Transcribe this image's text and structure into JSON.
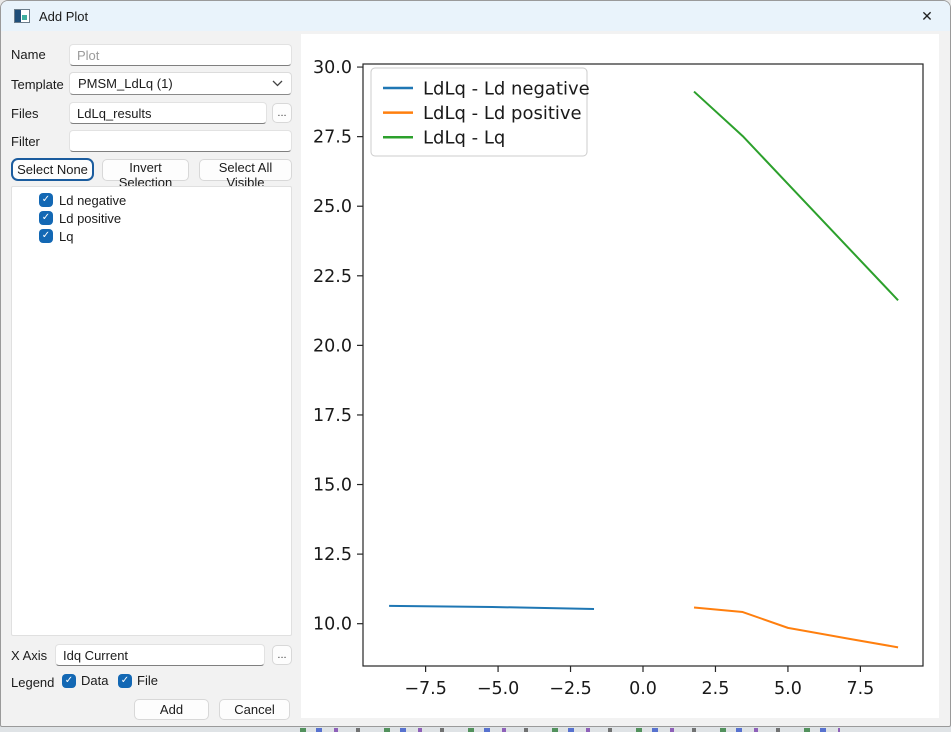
{
  "window": {
    "title": "Add Plot",
    "close_glyph": "✕"
  },
  "colors": {
    "accent": "#1368b4",
    "focus": "#1b5c9e",
    "titlebar": "#e9f3fb"
  },
  "form": {
    "name": {
      "label": "Name",
      "placeholder": "Plot",
      "value": ""
    },
    "template": {
      "label": "Template",
      "value": "PMSM_LdLq (1)"
    },
    "files": {
      "label": "Files",
      "value": "LdLq_results",
      "browse": "..."
    },
    "filter": {
      "label": "Filter",
      "value": ""
    },
    "selection_buttons": {
      "select_none": "Select None",
      "invert": "Invert Selection",
      "select_all": "Select All Visible"
    },
    "items": [
      {
        "label": "Ld negative",
        "checked": true
      },
      {
        "label": "Ld positive",
        "checked": true
      },
      {
        "label": "Lq",
        "checked": true
      }
    ],
    "xaxis": {
      "label": "X Axis",
      "value": "Idq Current",
      "browse": "..."
    },
    "legend": {
      "label": "Legend",
      "options": [
        {
          "label": "Data",
          "checked": true
        },
        {
          "label": "File",
          "checked": true
        }
      ]
    },
    "actions": {
      "add": "Add",
      "cancel": "Cancel"
    }
  },
  "chart_data": {
    "type": "line",
    "title": "",
    "xlabel": "",
    "ylabel": "",
    "xlim": [
      -9.66,
      9.66
    ],
    "ylim": [
      8.48,
      30.11
    ],
    "xticks": [
      -7.5,
      -5.0,
      -2.5,
      0.0,
      2.5,
      5.0,
      7.5
    ],
    "yticks": [
      10.0,
      12.5,
      15.0,
      17.5,
      20.0,
      22.5,
      25.0,
      27.5,
      30.0
    ],
    "grid": false,
    "legend_position": "upper left",
    "series": [
      {
        "name": "LdLq - Ld negative",
        "color": "#1f77b4",
        "points": [
          [
            -8.76,
            10.64
          ],
          [
            -5.2,
            10.6
          ],
          [
            -1.69,
            10.53
          ]
        ]
      },
      {
        "name": "LdLq - Ld positive",
        "color": "#ff7f0e",
        "points": [
          [
            1.76,
            10.58
          ],
          [
            3.44,
            10.42
          ],
          [
            5.0,
            9.85
          ],
          [
            7.1,
            9.46
          ],
          [
            8.8,
            9.15
          ]
        ]
      },
      {
        "name": "LdLq - Lq",
        "color": "#2ca02c",
        "points": [
          [
            1.76,
            29.12
          ],
          [
            3.44,
            27.52
          ],
          [
            5.0,
            25.8
          ],
          [
            7.0,
            23.6
          ],
          [
            8.8,
            21.62
          ]
        ]
      }
    ]
  }
}
